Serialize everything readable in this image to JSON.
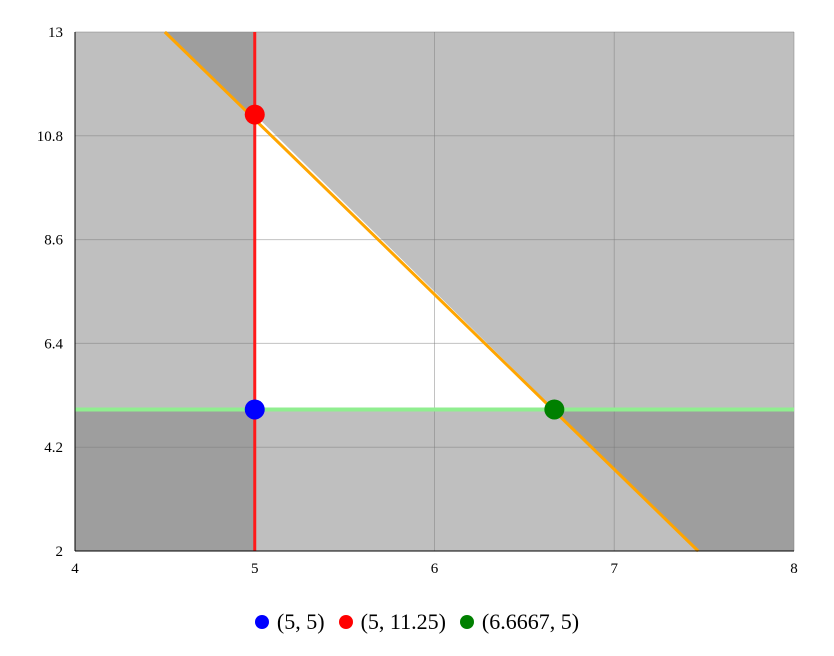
{
  "chart_data": {
    "type": "scatter",
    "xlim": [
      4,
      8
    ],
    "ylim": [
      2,
      13
    ],
    "x_ticks": [
      "4",
      "5",
      "6",
      "7",
      "8"
    ],
    "y_ticks": [
      "2",
      "4.2",
      "6.4",
      "8.6",
      "10.8",
      "13"
    ],
    "grid": true,
    "legend_position": "bottom",
    "constraint_lines": [
      {
        "kind": "vertical",
        "x": 5,
        "color": "#ff1a1a"
      },
      {
        "kind": "horizontal",
        "y": 5,
        "color": "#90ee90"
      },
      {
        "kind": "line",
        "points": [
          [
            4.5,
            13
          ],
          [
            7.4667,
            2
          ]
        ],
        "color": "#ffa500"
      }
    ],
    "feasible_region": [
      [
        5,
        5
      ],
      [
        5,
        11.25
      ],
      [
        6.6667,
        5
      ]
    ],
    "points": [
      {
        "label": "(5, 5)",
        "x": 5,
        "y": 5,
        "color": "#0000ff"
      },
      {
        "label": "(5, 11.25)",
        "x": 5,
        "y": 11.25,
        "color": "#ff0000"
      },
      {
        "label": "(6.6667, 5)",
        "x": 6.6667,
        "y": 5,
        "color": "#008000"
      }
    ],
    "colors": {
      "shade_light": "#bfbfbf",
      "shade_dark": "#9e9e9e",
      "feasible": "#ffffff"
    }
  }
}
